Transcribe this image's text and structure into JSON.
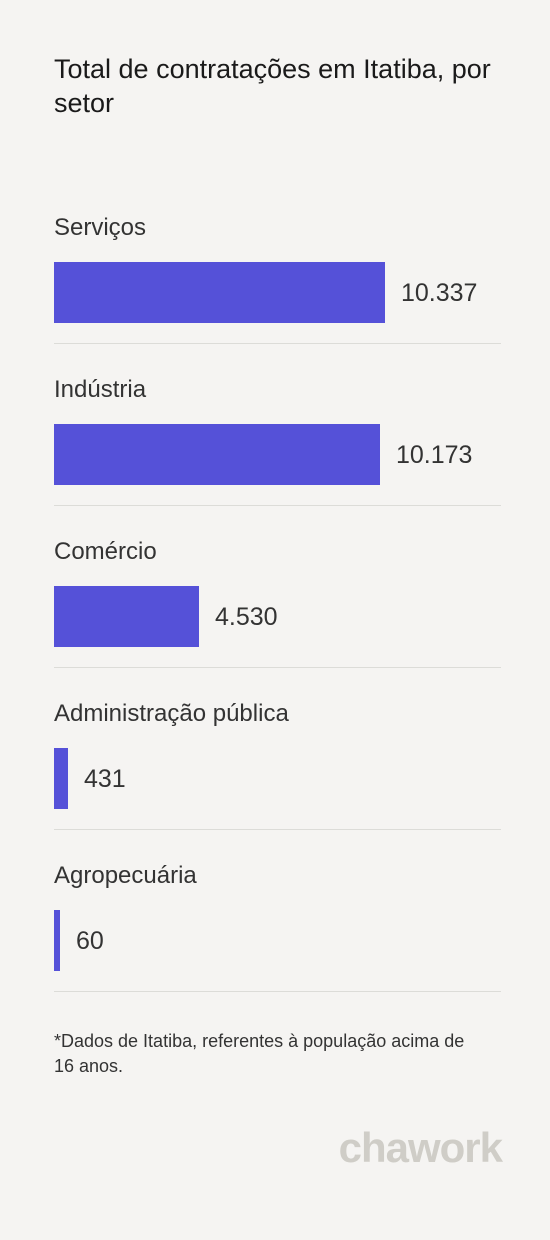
{
  "title": "Total de contratações em Itatiba, por setor",
  "footnote": "*Dados de Itatiba, referentes à população acima de 16 anos.",
  "brand": "chawork",
  "colors": {
    "bar": "#5551d8",
    "background": "#f5f4f2",
    "logo": "#cfcdc7"
  },
  "chart_data": {
    "type": "bar",
    "orientation": "horizontal",
    "title": "Total de contratações em Itatiba, por setor",
    "categories": [
      "Serviços",
      "Indústria",
      "Comércio",
      "Administração pública",
      "Agropecuária"
    ],
    "values": [
      10337,
      10173,
      4530,
      431,
      60
    ],
    "value_labels": [
      "10.337",
      "10.173",
      "4.530",
      "431",
      "60"
    ],
    "grid": false
  }
}
